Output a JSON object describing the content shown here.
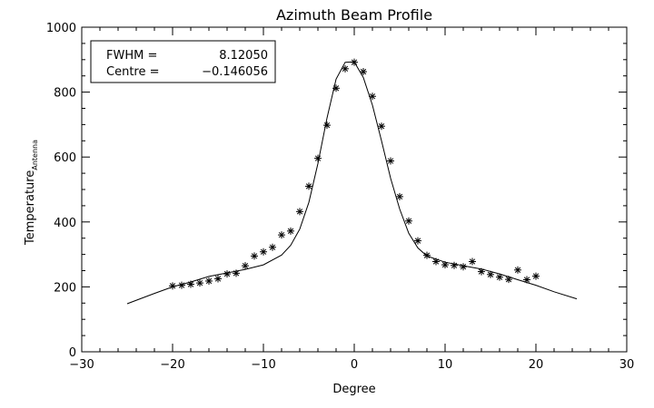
{
  "chart_data": {
    "type": "scatter",
    "title": "Azimuth Beam Profile",
    "xlabel": "Degree",
    "ylabel": "Temperature",
    "ylabel_subscript": "Antenna",
    "xlim": [
      -30,
      30
    ],
    "ylim": [
      0,
      1000
    ],
    "x_ticks": [
      -30,
      -20,
      -10,
      0,
      10,
      20,
      30
    ],
    "y_ticks": [
      0,
      200,
      400,
      600,
      800,
      1000
    ],
    "x_tick_labels": [
      "−30",
      "−20",
      "−10",
      "0",
      "10",
      "20",
      "30"
    ],
    "y_tick_labels": [
      "0",
      "200",
      "400",
      "600",
      "800",
      "1000"
    ],
    "grid": false,
    "annotation": {
      "lines": [
        {
          "key": "FWHM =",
          "value": "8.12050"
        },
        {
          "key": "Centre =",
          "value": "−0.146056"
        }
      ],
      "placement": "top-left"
    },
    "series": [
      {
        "marker": "asterisk",
        "x": [
          -20,
          -19,
          -18,
          -17,
          -16,
          -15,
          -14,
          -13,
          -12,
          -11,
          -10,
          -9,
          -8,
          -7,
          -6,
          -5,
          -4,
          -3,
          -2,
          -1,
          0,
          1,
          2,
          3,
          4,
          5,
          6,
          7,
          8,
          9,
          10,
          11,
          12,
          13,
          14,
          15,
          16,
          17,
          18,
          19,
          20
        ],
        "y": [
          203,
          205,
          208,
          212,
          218,
          225,
          240,
          242,
          265,
          295,
          308,
          322,
          360,
          372,
          432,
          510,
          596,
          698,
          812,
          872,
          892,
          863,
          787,
          695,
          588,
          478,
          403,
          342,
          297,
          278,
          268,
          266,
          262,
          278,
          247,
          238,
          230,
          223,
          252,
          222,
          233
        ]
      },
      {
        "line": "solid",
        "x": [
          -25,
          -22,
          -20,
          -18,
          -16,
          -14,
          -12,
          -10,
          -8,
          -7,
          -6,
          -5,
          -4,
          -3,
          -2,
          -1,
          0,
          1,
          2,
          3,
          4,
          5,
          6,
          7,
          8,
          10,
          12,
          14,
          16,
          18,
          20,
          22,
          24.5
        ],
        "y": [
          148,
          180,
          200,
          215,
          232,
          243,
          254,
          268,
          298,
          328,
          378,
          460,
          580,
          720,
          840,
          892,
          893,
          845,
          760,
          650,
          535,
          440,
          365,
          320,
          295,
          276,
          265,
          255,
          240,
          222,
          205,
          185,
          163
        ]
      }
    ]
  }
}
